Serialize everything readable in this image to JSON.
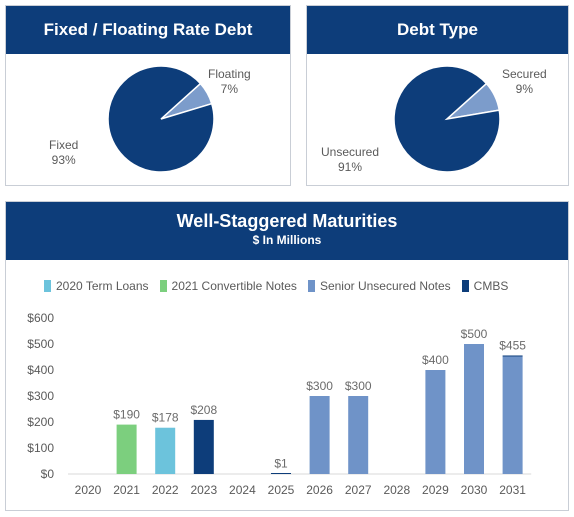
{
  "fixed_floating": {
    "title": "Fixed / Floating Rate Debt",
    "fixed_label": "Fixed",
    "fixed_pct": "93%",
    "floating_label": "Floating",
    "floating_pct": "7%"
  },
  "debt_type": {
    "title": "Debt Type",
    "unsecured_label": "Unsecured",
    "unsecured_pct": "91%",
    "secured_label": "Secured",
    "secured_pct": "9%"
  },
  "maturities": {
    "title": "Well-Staggered Maturities",
    "subtitle": "$ In Millions"
  },
  "colors": {
    "navy": "#0d3d7a",
    "term_loans": "#6cc3dc",
    "convertible": "#7ccf7e",
    "senior": "#6f93c8",
    "cmbs": "#0d3d7a",
    "pie_light": "#7c9ccb"
  },
  "chart_data": [
    {
      "type": "pie",
      "title": "Fixed / Floating Rate Debt",
      "labels": [
        "Fixed",
        "Floating"
      ],
      "values": [
        93,
        7
      ],
      "colors": [
        "#0d3d7a",
        "#7c9ccb"
      ]
    },
    {
      "type": "pie",
      "title": "Debt Type",
      "labels": [
        "Unsecured",
        "Secured"
      ],
      "values": [
        91,
        9
      ],
      "colors": [
        "#0d3d7a",
        "#7c9ccb"
      ]
    },
    {
      "type": "bar",
      "title": "Well-Staggered Maturities",
      "subtitle": "$ In Millions",
      "categories": [
        "2020",
        "2021",
        "2022",
        "2023",
        "2024",
        "2025",
        "2026",
        "2027",
        "2028",
        "2029",
        "2030",
        "2031"
      ],
      "series": [
        {
          "name": "2020 Term Loans",
          "color": "#6cc3dc",
          "values": [
            0,
            0,
            178,
            0,
            0,
            0,
            0,
            0,
            0,
            0,
            0,
            0
          ]
        },
        {
          "name": "2021 Convertible Notes",
          "color": "#7ccf7e",
          "values": [
            0,
            190,
            0,
            0,
            0,
            0,
            0,
            0,
            0,
            0,
            0,
            0
          ]
        },
        {
          "name": "Senior Unsecured Notes",
          "color": "#6f93c8",
          "values": [
            0,
            0,
            0,
            0,
            0,
            0,
            300,
            300,
            0,
            400,
            500,
            452
          ]
        },
        {
          "name": "CMBS",
          "color": "#0d3d7a",
          "values": [
            0,
            0,
            0,
            208,
            0,
            1,
            0,
            0,
            0,
            0,
            0,
            3
          ]
        }
      ],
      "data_labels": [
        "",
        "$190",
        "$178",
        "$208",
        "",
        "$1",
        "$300",
        "$300",
        "",
        "$400",
        "$500",
        "$455"
      ],
      "y_ticks": [
        "$0",
        "$100",
        "$200",
        "$300",
        "$400",
        "$500",
        "$600"
      ],
      "ylim": [
        0,
        600
      ],
      "grid": false,
      "legend_position": "top"
    }
  ]
}
